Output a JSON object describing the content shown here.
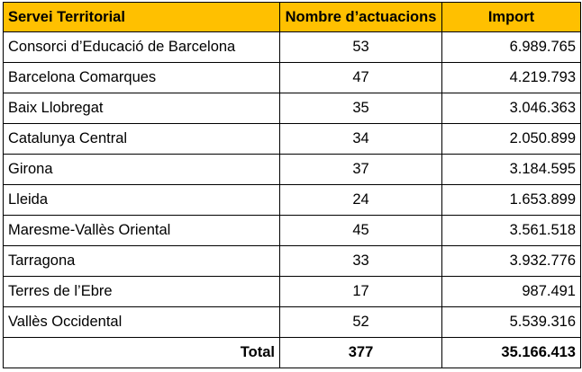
{
  "table": {
    "headers": {
      "territory": "Servei Territorial",
      "actions": "Nombre d’actuacions",
      "amount": "Import"
    },
    "rows": [
      {
        "territory": "Consorci d’Educació de Barcelona",
        "actions": "53",
        "amount": "6.989.765"
      },
      {
        "territory": "Barcelona Comarques",
        "actions": "47",
        "amount": "4.219.793"
      },
      {
        "territory": "Baix Llobregat",
        "actions": "35",
        "amount": "3.046.363"
      },
      {
        "territory": "Catalunya Central",
        "actions": "34",
        "amount": "2.050.899"
      },
      {
        "territory": "Girona",
        "actions": "37",
        "amount": "3.184.595"
      },
      {
        "territory": "Lleida",
        "actions": "24",
        "amount": "1.653.899"
      },
      {
        "territory": "Maresme-Vallès Oriental",
        "actions": "45",
        "amount": "3.561.518"
      },
      {
        "territory": "Tarragona",
        "actions": "33",
        "amount": "3.932.776"
      },
      {
        "territory": "Terres de l’Ebre",
        "actions": "17",
        "amount": "987.491"
      },
      {
        "territory": "Vallès Occidental",
        "actions": "52",
        "amount": "5.539.316"
      }
    ],
    "total": {
      "label": "Total",
      "actions": "377",
      "amount": "35.166.413"
    }
  },
  "colors": {
    "header_background": "#ffc000",
    "border": "#000000"
  }
}
